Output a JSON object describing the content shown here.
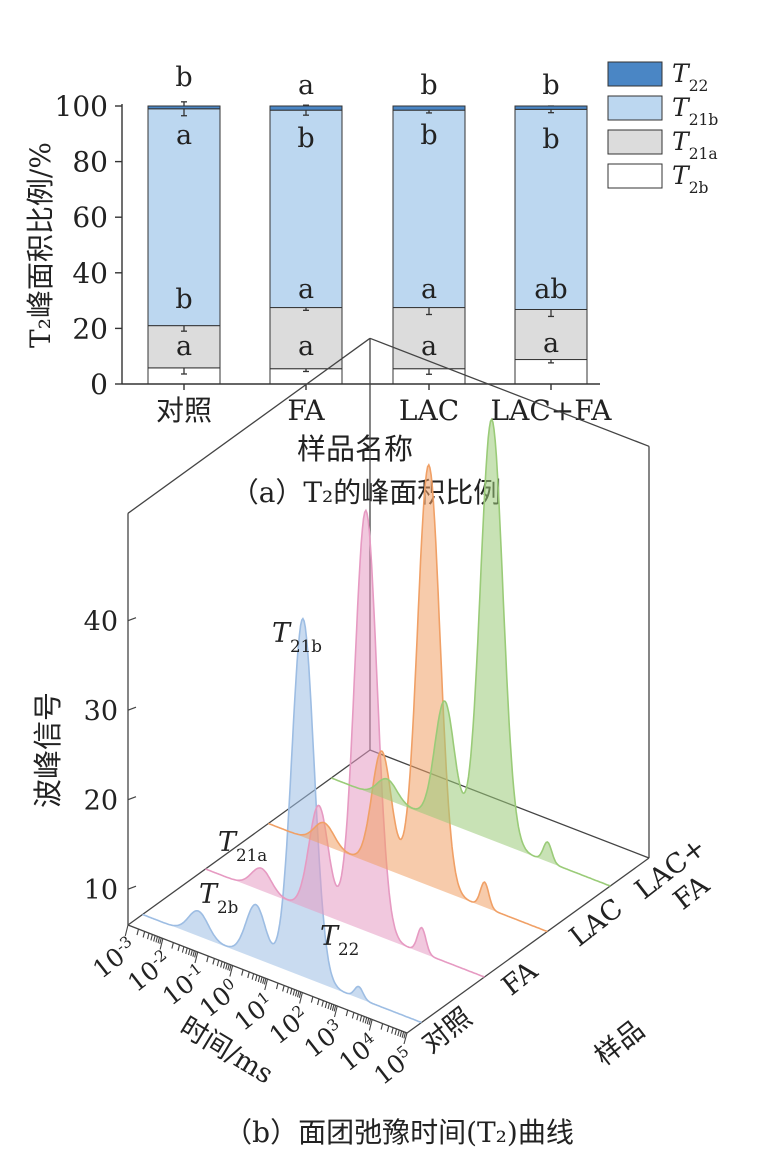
{
  "chart_data": [
    {
      "type": "bar",
      "stacked": true,
      "caption": "（a）T₂的峰面积比例",
      "ylabel": "T₂峰面积比例/%",
      "xlabel": "样品名称",
      "categories": [
        "对照",
        "FA",
        "LAC",
        "LAC+FA"
      ],
      "ylim": [
        0,
        100
      ],
      "yticks": [
        0,
        20,
        40,
        60,
        80,
        100
      ],
      "series": [
        {
          "name": "T2b",
          "base": "T",
          "sub": "2b",
          "color": "#ffffff",
          "values": [
            5.8,
            5.5,
            5.5,
            8.8
          ],
          "errors": [
            2.2,
            1.0,
            2.0,
            1.2
          ],
          "letters": [
            "a",
            "a",
            "a",
            "a"
          ]
        },
        {
          "name": "T21a",
          "base": "T",
          "sub": "21a",
          "color": "#dcdcdc",
          "values": [
            15.2,
            22.0,
            22.0,
            18.0
          ],
          "errors": [
            2.0,
            1.0,
            2.5,
            2.5
          ],
          "letters": [
            "b",
            "a",
            "a",
            "ab"
          ]
        },
        {
          "name": "T21b",
          "base": "T",
          "sub": "21b",
          "color": "#bcd7f0",
          "values": [
            78.0,
            71.0,
            71.0,
            72.0
          ],
          "errors": [
            2.5,
            1.8,
            1.0,
            1.2
          ],
          "letters": [
            "a",
            "b",
            "b",
            "b"
          ]
        },
        {
          "name": "T22",
          "base": "T",
          "sub": "22",
          "color": "#4a86c5",
          "values": [
            1.0,
            1.5,
            1.5,
            1.2
          ],
          "errors": [
            0,
            0,
            0,
            0
          ],
          "letters": [
            "b",
            "a",
            "b",
            "b"
          ]
        }
      ],
      "grid": false,
      "legend_position": "top-right"
    },
    {
      "type": "line",
      "view": "3d-waterfall",
      "caption": "（b）面团弛豫时间(T₂)曲线",
      "zlabel": "波峰信号",
      "xlabel": "时间/ms",
      "ylabel": "样品",
      "x_log_scale": true,
      "xticks": [
        {
          "base": "10",
          "exp": "-3"
        },
        {
          "base": "10",
          "exp": "-2"
        },
        {
          "base": "10",
          "exp": "-1"
        },
        {
          "base": "10",
          "exp": "0"
        },
        {
          "base": "10",
          "exp": "1"
        },
        {
          "base": "10",
          "exp": "2"
        },
        {
          "base": "10",
          "exp": "3"
        },
        {
          "base": "10",
          "exp": "4"
        },
        {
          "base": "10",
          "exp": "5"
        }
      ],
      "zticks": [
        10,
        20,
        30,
        40
      ],
      "samples": [
        "对照",
        "FA",
        "LAC",
        "LAC+\nFA"
      ],
      "peak_labels": [
        {
          "base": "T",
          "sub": "21b"
        },
        {
          "base": "T",
          "sub": "21a"
        },
        {
          "base": "T",
          "sub": "2b"
        },
        {
          "base": "T",
          "sub": "22"
        }
      ],
      "series": [
        {
          "name": "对照",
          "color": "#9dbde3",
          "peaks": [
            {
              "log_t": -1.4,
              "amp": 2.8
            },
            {
              "log_t": 0.25,
              "amp": 6.0
            },
            {
              "log_t": 1.6,
              "amp": 40.0
            },
            {
              "log_t": 3.2,
              "amp": 1.3
            }
          ]
        },
        {
          "name": "FA",
          "color": "#e69ac2",
          "peaks": [
            {
              "log_t": -1.4,
              "amp": 2.5
            },
            {
              "log_t": 0.25,
              "amp": 12.0
            },
            {
              "log_t": 1.6,
              "amp": 47.0
            },
            {
              "log_t": 3.2,
              "amp": 2.8
            }
          ]
        },
        {
          "name": "LAC",
          "color": "#f0a066",
          "peaks": [
            {
              "log_t": -1.4,
              "amp": 2.5
            },
            {
              "log_t": 0.25,
              "amp": 13.0
            },
            {
              "log_t": 1.6,
              "amp": 47.0
            },
            {
              "log_t": 3.2,
              "amp": 2.8
            }
          ]
        },
        {
          "name": "LAC+FA",
          "color": "#9acb78",
          "peaks": [
            {
              "log_t": -1.4,
              "amp": 2.3
            },
            {
              "log_t": 0.25,
              "amp": 13.5
            },
            {
              "log_t": 1.6,
              "amp": 47.0
            },
            {
              "log_t": 3.2,
              "amp": 2.2
            }
          ]
        }
      ]
    }
  ]
}
